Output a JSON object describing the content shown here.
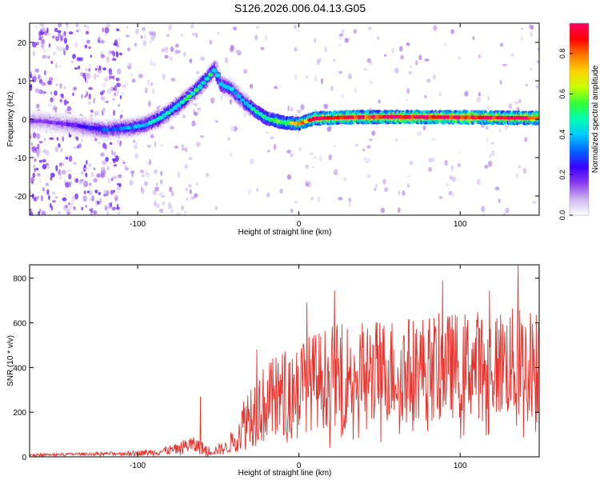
{
  "title": "S126.2026.006.04.13.G05",
  "chart_data": [
    {
      "type": "heatmap",
      "name": "spectrogram",
      "xlabel": "Height of straight line (km)",
      "ylabel": "Frequency (Hz)",
      "xlim": [
        -167,
        149
      ],
      "ylim": [
        -25,
        25
      ],
      "xticks": [
        -100,
        0,
        100
      ],
      "xtick_labels": [
        "-100",
        "0",
        "100"
      ],
      "yticks": [
        20,
        10,
        0,
        -10,
        -20
      ],
      "ytick_labels": [
        "20",
        "10",
        "0",
        "-10",
        "-20"
      ],
      "ridge": {
        "x": [
          -160,
          -140,
          -120,
          -105,
          -95,
          -85,
          -75,
          -65,
          -58,
          -52,
          -48,
          -42,
          -35,
          -28,
          -20,
          -10,
          0,
          10,
          30,
          60,
          100,
          149
        ],
        "freq": [
          -0.5,
          -1.5,
          -2.8,
          -2.2,
          -1.5,
          0.5,
          3.5,
          7,
          10,
          13,
          9,
          8,
          5,
          2.5,
          0.2,
          -0.8,
          -1.2,
          0.2,
          0.5,
          0.6,
          0.5,
          0.3
        ],
        "amplitude": [
          0.15,
          0.2,
          0.3,
          0.35,
          0.4,
          0.45,
          0.45,
          0.5,
          0.5,
          0.5,
          0.45,
          0.4,
          0.4,
          0.45,
          0.5,
          0.6,
          0.7,
          0.9,
          0.9,
          0.95,
          0.95,
          0.9
        ]
      },
      "colorbar": {
        "label": "Normalized spectral amplitude",
        "range": [
          0,
          0.95
        ],
        "ticks": [
          0.0,
          0.2,
          0.4,
          0.6,
          0.8
        ],
        "tick_labels": [
          "0.0",
          "0.2",
          "0.4",
          "0.6",
          "0.8"
        ],
        "colors": [
          "#ffffff",
          "#cdb6ee",
          "#8c3cf0",
          "#3c00ff",
          "#0064ff",
          "#00c8ff",
          "#00ffb4",
          "#32ff32",
          "#c8ff00",
          "#ffd200",
          "#ff7800",
          "#ff0000",
          "#ff0064"
        ]
      }
    },
    {
      "type": "line",
      "name": "snr",
      "xlabel": "Height of straight line (km)",
      "ylabel": "SNR (10 * v/v)",
      "xlim": [
        -167,
        149
      ],
      "ylim": [
        0,
        860
      ],
      "xticks": [
        -100,
        0,
        100
      ],
      "xtick_labels": [
        "-100",
        "0",
        "100"
      ],
      "yticks": [
        0,
        200,
        400,
        600,
        800
      ],
      "ytick_labels": [
        "0",
        "200",
        "400",
        "600",
        "800"
      ],
      "color": "#e8322c",
      "envelope": {
        "x": [
          -167,
          -140,
          -110,
          -90,
          -75,
          -68,
          -62,
          -55,
          -45,
          -40,
          -35,
          -30,
          -20,
          -10,
          0,
          10,
          20,
          40,
          60,
          80,
          100,
          120,
          140,
          149
        ],
        "mean": [
          8,
          12,
          15,
          20,
          35,
          55,
          45,
          25,
          40,
          80,
          140,
          200,
          240,
          280,
          320,
          340,
          360,
          380,
          390,
          400,
          410,
          420,
          420,
          420
        ],
        "spread": [
          5,
          6,
          8,
          15,
          25,
          40,
          35,
          20,
          30,
          60,
          120,
          160,
          180,
          200,
          210,
          220,
          230,
          230,
          240,
          240,
          240,
          250,
          250,
          250
        ]
      },
      "peaks": [
        {
          "x": -61,
          "y": 270
        },
        {
          "x": -26,
          "y": 480
        },
        {
          "x": 5,
          "y": 690
        },
        {
          "x": 22,
          "y": 745
        },
        {
          "x": 89,
          "y": 790
        },
        {
          "x": 118,
          "y": 745
        },
        {
          "x": 136,
          "y": 860
        }
      ]
    }
  ]
}
